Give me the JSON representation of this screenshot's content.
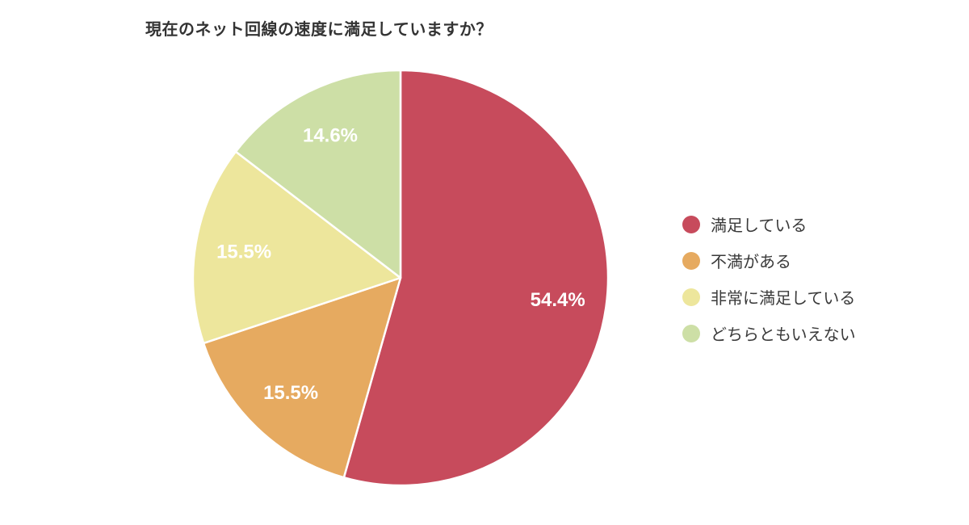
{
  "title": "現在のネット回線の速度に満足していますか？",
  "chart_data": {
    "type": "pie",
    "title": "現在のネット回線の速度に満足していますか？",
    "start_angle_deg": 0,
    "direction": "clockwise",
    "legend_position": "right",
    "slice_border_color": "#ffffff",
    "label_color": "#ffffff",
    "label_radius_ratio": 0.765,
    "slices": [
      {
        "label": "満足している",
        "value": 54.4,
        "display": "54.4%",
        "color": "#c74b5c"
      },
      {
        "label": "不満がある",
        "value": 15.5,
        "display": "15.5%",
        "color": "#e6aa60"
      },
      {
        "label": "非常に満足している",
        "value": 15.5,
        "display": "15.5%",
        "color": "#ede69c"
      },
      {
        "label": "どちらともいえない",
        "value": 14.6,
        "display": "14.6%",
        "color": "#cddfa6"
      }
    ]
  }
}
